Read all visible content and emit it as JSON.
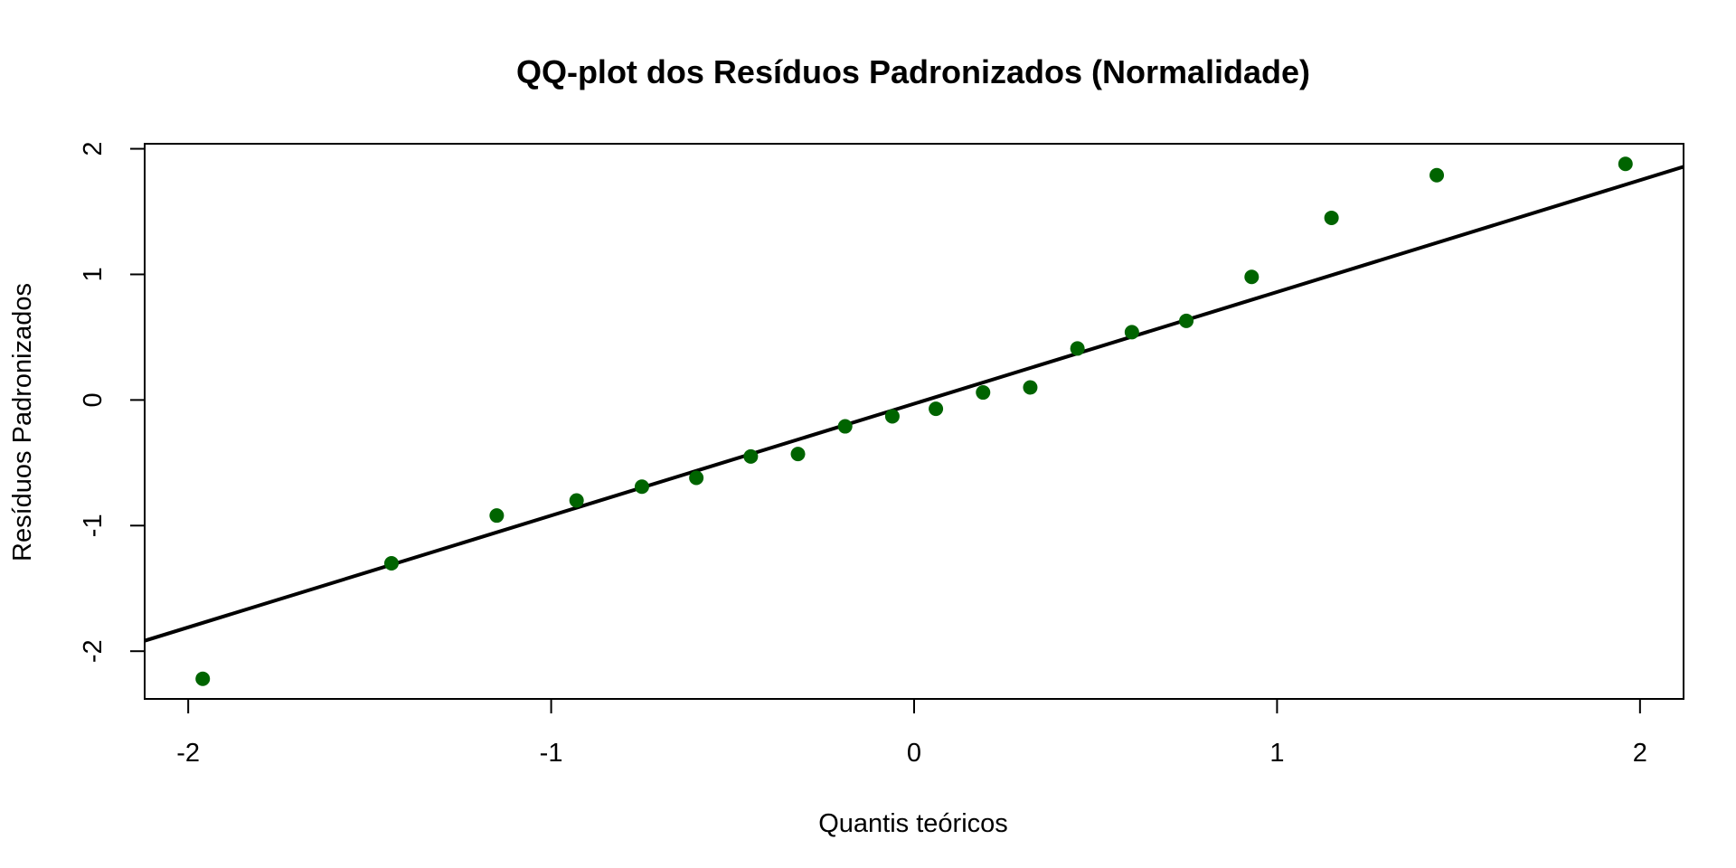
{
  "chart_data": {
    "type": "scatter",
    "title": "QQ-plot dos Resíduos Padronizados (Normalidade)",
    "xlabel": "Quantis teóricos",
    "ylabel": "Resíduos Padronizados",
    "xlim": [
      -2.12,
      2.12
    ],
    "ylim": [
      -2.38,
      2.04
    ],
    "xticks": [
      -2,
      -1,
      0,
      1,
      2
    ],
    "xtick_labels": [
      "-2",
      "-1",
      "0",
      "1",
      "2"
    ],
    "yticks": [
      -2,
      -1,
      0,
      1,
      2
    ],
    "ytick_labels": [
      "-2",
      "-1",
      "0",
      "1",
      "2"
    ],
    "grid": false,
    "box": true,
    "point_color": "#006400",
    "line_color": "#000000",
    "points": [
      {
        "x": -1.96,
        "y": -2.22
      },
      {
        "x": -1.44,
        "y": -1.3
      },
      {
        "x": -1.15,
        "y": -0.92
      },
      {
        "x": -0.93,
        "y": -0.8
      },
      {
        "x": -0.75,
        "y": -0.69
      },
      {
        "x": -0.6,
        "y": -0.62
      },
      {
        "x": -0.45,
        "y": -0.45
      },
      {
        "x": -0.32,
        "y": -0.43
      },
      {
        "x": -0.19,
        "y": -0.21
      },
      {
        "x": -0.06,
        "y": -0.13
      },
      {
        "x": 0.06,
        "y": -0.07
      },
      {
        "x": 0.19,
        "y": 0.06
      },
      {
        "x": 0.32,
        "y": 0.1
      },
      {
        "x": 0.45,
        "y": 0.41
      },
      {
        "x": 0.6,
        "y": 0.54
      },
      {
        "x": 0.75,
        "y": 0.63
      },
      {
        "x": 0.93,
        "y": 0.98
      },
      {
        "x": 1.15,
        "y": 1.45
      },
      {
        "x": 1.44,
        "y": 1.79
      },
      {
        "x": 1.96,
        "y": 1.88
      }
    ],
    "reference_line": {
      "intercept": -0.03,
      "slope": 0.89
    }
  }
}
